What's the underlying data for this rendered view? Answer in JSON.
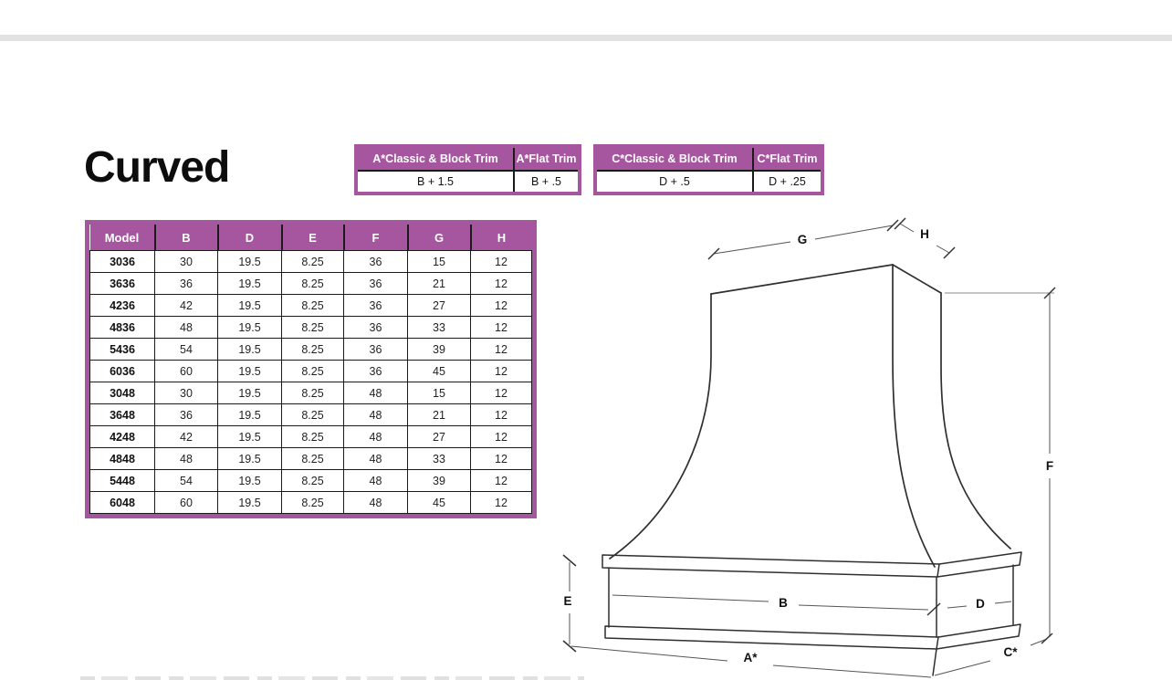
{
  "page": {
    "title": "Curved"
  },
  "trim_tables": [
    {
      "headers": [
        "A*Classic & Block Trim",
        "A*Flat Trim"
      ],
      "values": [
        "B + 1.5",
        "B + .5"
      ]
    },
    {
      "headers": [
        "C*Classic & Block Trim",
        "C*Flat Trim"
      ],
      "values": [
        "D + .5",
        "D + .25"
      ]
    }
  ],
  "spec_table": {
    "headers": [
      "Model",
      "B",
      "D",
      "E",
      "F",
      "G",
      "H"
    ],
    "rows": [
      [
        "3036",
        "30",
        "19.5",
        "8.25",
        "36",
        "15",
        "12"
      ],
      [
        "3636",
        "36",
        "19.5",
        "8.25",
        "36",
        "21",
        "12"
      ],
      [
        "4236",
        "42",
        "19.5",
        "8.25",
        "36",
        "27",
        "12"
      ],
      [
        "4836",
        "48",
        "19.5",
        "8.25",
        "36",
        "33",
        "12"
      ],
      [
        "5436",
        "54",
        "19.5",
        "8.25",
        "36",
        "39",
        "12"
      ],
      [
        "6036",
        "60",
        "19.5",
        "8.25",
        "36",
        "45",
        "12"
      ],
      [
        "3048",
        "30",
        "19.5",
        "8.25",
        "48",
        "15",
        "12"
      ],
      [
        "3648",
        "36",
        "19.5",
        "8.25",
        "48",
        "21",
        "12"
      ],
      [
        "4248",
        "42",
        "19.5",
        "8.25",
        "48",
        "27",
        "12"
      ],
      [
        "4848",
        "48",
        "19.5",
        "8.25",
        "48",
        "33",
        "12"
      ],
      [
        "5448",
        "54",
        "19.5",
        "8.25",
        "48",
        "39",
        "12"
      ],
      [
        "6048",
        "60",
        "19.5",
        "8.25",
        "48",
        "45",
        "12"
      ]
    ]
  },
  "diagram": {
    "label_g": "G",
    "label_h": "H",
    "label_f": "F",
    "label_e": "E",
    "label_b": "B",
    "label_d": "D",
    "label_a": "A*",
    "label_c": "C*"
  },
  "colors": {
    "accent_purple": "#a6569e",
    "table_line": "#1a1a1a",
    "drawing_line": "#2f2f2f",
    "divider_gray": "#e2e2e2"
  }
}
